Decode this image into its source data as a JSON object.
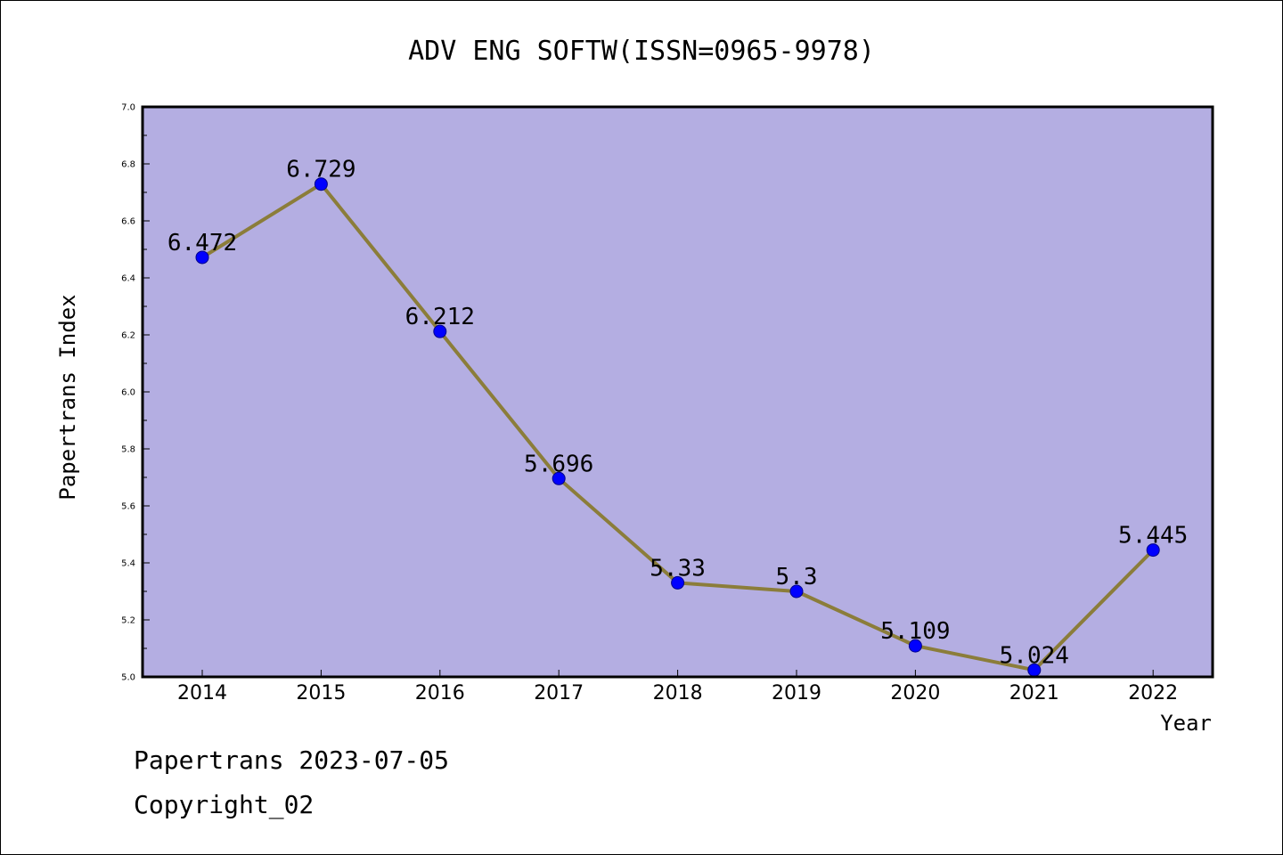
{
  "chart_data": {
    "type": "line",
    "title": "ADV ENG SOFTW(ISSN=0965-9978)",
    "xlabel": "Year",
    "ylabel": "Papertrans Index",
    "categories": [
      "2014",
      "2015",
      "2016",
      "2017",
      "2018",
      "2019",
      "2020",
      "2021",
      "2022"
    ],
    "series": [
      {
        "values": [
          6.472,
          6.729,
          6.212,
          5.696,
          5.33,
          5.3,
          5.109,
          5.024,
          5.445
        ]
      }
    ],
    "data_labels": [
      "6.472",
      "6.729",
      "6.212",
      "5.696",
      "5.33",
      "5.3",
      "5.109",
      "5.024",
      "5.445"
    ],
    "ylim": [
      5.0,
      7.0
    ],
    "yticks": [
      "5.0",
      "5.2",
      "5.4",
      "5.6",
      "5.8",
      "6.0",
      "6.2",
      "6.4",
      "6.6",
      "6.8",
      "7.0"
    ],
    "grid": false,
    "legend": "none",
    "colors": {
      "plot_background": "#b4aee2",
      "line": "#8b7d3a",
      "marker": "#0000ff"
    }
  },
  "footer": {
    "line1": "Papertrans 2023-07-05",
    "line2": "Copyright_02"
  }
}
